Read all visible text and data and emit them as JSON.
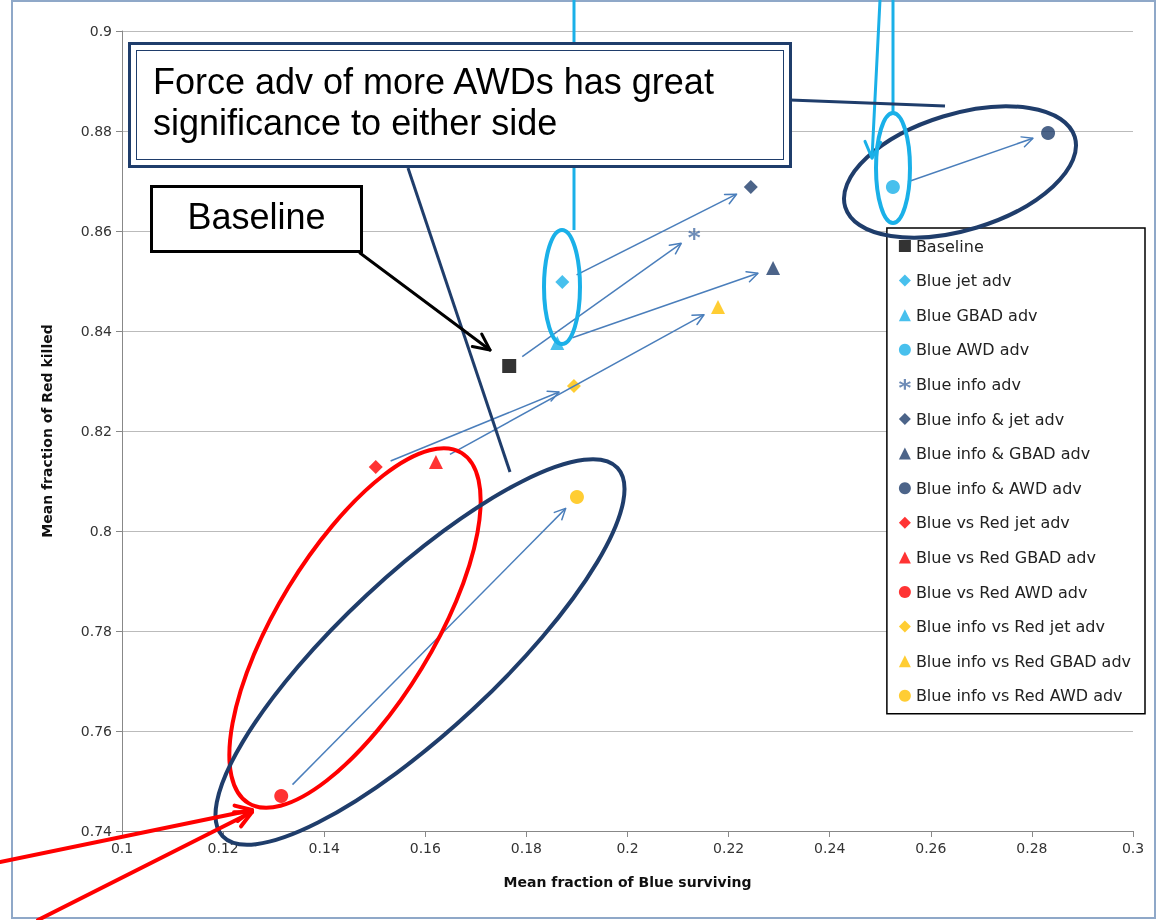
{
  "chart_data": {
    "type": "scatter",
    "xlabel": "Mean fraction of Blue surviving",
    "ylabel": "Mean fraction of Red killed",
    "xlim": [
      0.1,
      0.3
    ],
    "xticks": [
      0.1,
      0.12,
      0.14,
      0.16,
      0.18,
      0.2,
      0.22,
      0.24,
      0.26,
      0.28,
      0.3
    ],
    "ylim": [
      0.74,
      0.9
    ],
    "yticks": [
      0.74,
      0.76,
      0.78,
      0.8,
      0.82,
      0.84,
      0.86,
      0.88,
      0.9
    ],
    "grid": "y",
    "legend": "right",
    "annotations": [
      "Force adv of more AWDs has great significance to either side",
      "Baseline"
    ],
    "series": [
      {
        "name": "Baseline",
        "color": "#000000",
        "marker": "square",
        "x": [
          0.1766
        ],
        "values": [
          0.833
        ]
      },
      {
        "name": "Blue jet adv",
        "color": "#1ab0e8",
        "marker": "diamond",
        "x": [
          0.1871
        ],
        "values": [
          0.8498
        ]
      },
      {
        "name": "Blue GBAD adv",
        "color": "#1ab0e8",
        "marker": "triangle",
        "x": [
          0.1861
        ],
        "values": [
          0.8376
        ]
      },
      {
        "name": "Blue AWD adv",
        "color": "#1ab0e8",
        "marker": "circle",
        "x": [
          0.2525
        ],
        "values": [
          0.8688
        ]
      },
      {
        "name": "Blue info adv",
        "color": "#4a6fa5",
        "marker": "cross",
        "x": [
          0.2132
        ],
        "values": [
          0.8594
        ]
      },
      {
        "name": "Blue info & jet adv",
        "color": "#1f3d6b",
        "marker": "diamond",
        "x": [
          0.2244
        ],
        "values": [
          0.8688
        ]
      },
      {
        "name": "Blue info & GBAD adv",
        "color": "#1f3d6b",
        "marker": "triangle",
        "x": [
          0.2288
        ],
        "values": [
          0.8526
        ]
      },
      {
        "name": "Blue info & AWD adv",
        "color": "#1f3d6b",
        "marker": "circle",
        "x": [
          0.2832
        ],
        "values": [
          0.8796
        ]
      },
      {
        "name": "Blue vs Red jet adv",
        "color": "#ff0000",
        "marker": "diamond",
        "x": [
          0.1502
        ],
        "values": [
          0.8128
        ]
      },
      {
        "name": "Blue vs Red GBAD adv",
        "color": "#ff0000",
        "marker": "triangle",
        "x": [
          0.1621
        ],
        "values": [
          0.8138
        ]
      },
      {
        "name": "Blue vs Red AWD adv",
        "color": "#ff0000",
        "marker": "circle",
        "x": [
          0.1315
        ],
        "values": [
          0.747
        ]
      },
      {
        "name": "Blue info vs Red jet adv",
        "color": "#ffc000",
        "marker": "diamond",
        "x": [
          0.1894
        ],
        "values": [
          0.829
        ]
      },
      {
        "name": "Blue info vs Red GBAD adv",
        "color": "#ffc000",
        "marker": "triangle",
        "x": [
          0.2179
        ],
        "values": [
          0.8448
        ]
      },
      {
        "name": "Blue info vs Red AWD adv",
        "color": "#ffc000",
        "marker": "circle",
        "x": [
          0.19
        ],
        "values": [
          0.8068
        ]
      }
    ]
  }
}
